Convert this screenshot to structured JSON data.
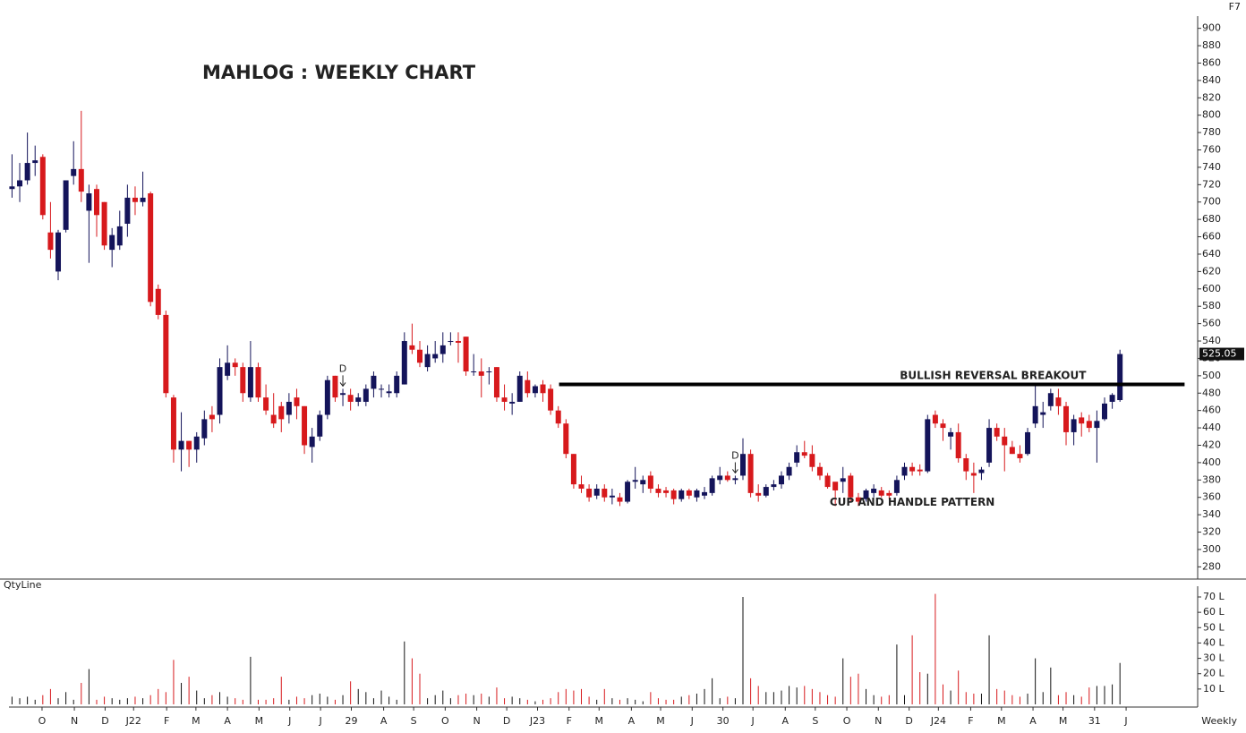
{
  "chart_data": {
    "type": "candlestick",
    "title": "MAHLOG : WEEKLY CHART",
    "corner_label": "F7",
    "period_label": "Weekly",
    "colors": {
      "up": "#14145a",
      "down": "#d7191c"
    },
    "open": [
      715,
      718,
      725,
      745,
      752,
      665,
      620,
      668,
      730,
      738,
      690,
      715,
      700,
      645,
      650,
      675,
      705,
      700,
      710,
      600,
      570,
      475,
      415,
      425,
      415,
      428,
      455,
      455,
      500,
      515,
      510,
      475,
      510,
      475,
      455,
      465,
      455,
      475,
      465,
      418,
      430,
      455,
      500,
      478,
      478,
      470,
      470,
      485,
      485,
      480,
      480,
      490,
      535,
      530,
      510,
      520,
      525,
      540,
      540,
      545,
      505,
      505,
      505,
      510,
      475,
      468,
      470,
      495,
      480,
      490,
      485,
      460,
      445,
      410,
      375,
      370,
      362,
      370,
      360,
      360,
      355,
      378,
      375,
      385,
      370,
      368,
      368,
      358,
      368,
      360,
      362,
      365,
      380,
      385,
      380,
      385,
      410,
      365,
      362,
      372,
      375,
      385,
      400,
      412,
      410,
      395,
      385,
      378,
      378,
      385,
      360,
      358,
      365,
      368,
      365,
      365,
      385,
      395,
      392,
      390,
      455,
      445,
      430,
      435,
      405,
      388,
      388,
      400,
      440,
      430,
      418,
      410,
      410,
      445,
      455,
      465,
      475,
      465,
      435,
      452,
      448,
      440,
      450,
      470,
      472
    ],
    "high": [
      755,
      745,
      780,
      765,
      755,
      700,
      668,
      725,
      770,
      805,
      720,
      720,
      700,
      670,
      690,
      720,
      718,
      735,
      712,
      605,
      575,
      478,
      458,
      425,
      435,
      460,
      465,
      520,
      535,
      520,
      515,
      540,
      515,
      490,
      480,
      470,
      480,
      485,
      465,
      440,
      460,
      500,
      500,
      485,
      485,
      480,
      490,
      505,
      490,
      490,
      505,
      550,
      560,
      540,
      535,
      540,
      550,
      550,
      550,
      545,
      525,
      520,
      510,
      510,
      490,
      480,
      505,
      505,
      490,
      495,
      490,
      465,
      450,
      410,
      385,
      375,
      375,
      375,
      370,
      365,
      380,
      395,
      385,
      390,
      375,
      372,
      370,
      370,
      370,
      370,
      372,
      385,
      395,
      390,
      385,
      428,
      415,
      375,
      375,
      380,
      390,
      400,
      420,
      425,
      420,
      400,
      388,
      375,
      395,
      388,
      365,
      370,
      375,
      372,
      368,
      385,
      400,
      400,
      398,
      455,
      460,
      450,
      440,
      445,
      410,
      400,
      395,
      450,
      445,
      440,
      425,
      420,
      440,
      490,
      470,
      485,
      485,
      470,
      455,
      458,
      455,
      460,
      475,
      480,
      530
    ],
    "low": [
      705,
      700,
      720,
      730,
      680,
      635,
      610,
      665,
      720,
      700,
      630,
      660,
      645,
      625,
      645,
      660,
      685,
      695,
      580,
      565,
      475,
      400,
      390,
      395,
      400,
      420,
      435,
      445,
      495,
      500,
      470,
      470,
      470,
      455,
      440,
      435,
      445,
      450,
      410,
      400,
      425,
      450,
      470,
      465,
      460,
      465,
      465,
      475,
      475,
      475,
      475,
      490,
      525,
      510,
      505,
      515,
      515,
      535,
      515,
      500,
      500,
      475,
      490,
      470,
      460,
      455,
      470,
      475,
      475,
      470,
      455,
      440,
      405,
      370,
      365,
      355,
      358,
      355,
      352,
      350,
      353,
      370,
      365,
      365,
      360,
      360,
      352,
      355,
      358,
      355,
      358,
      362,
      375,
      378,
      375,
      380,
      360,
      355,
      360,
      368,
      370,
      380,
      395,
      405,
      390,
      380,
      370,
      350,
      365,
      355,
      350,
      355,
      360,
      360,
      358,
      362,
      380,
      385,
      385,
      388,
      440,
      425,
      415,
      400,
      380,
      365,
      380,
      395,
      425,
      390,
      410,
      400,
      408,
      440,
      440,
      460,
      455,
      420,
      420,
      430,
      435,
      400,
      448,
      462,
      470
    ],
    "close": [
      718,
      725,
      745,
      748,
      685,
      645,
      665,
      725,
      738,
      712,
      710,
      685,
      650,
      662,
      672,
      705,
      700,
      705,
      585,
      570,
      480,
      415,
      425,
      415,
      430,
      450,
      450,
      510,
      515,
      510,
      480,
      510,
      475,
      460,
      445,
      450,
      470,
      465,
      420,
      430,
      455,
      495,
      475,
      480,
      470,
      475,
      485,
      500,
      485,
      482,
      500,
      540,
      530,
      515,
      525,
      525,
      535,
      540,
      538,
      505,
      505,
      500,
      505,
      475,
      470,
      470,
      500,
      480,
      488,
      480,
      460,
      445,
      410,
      375,
      370,
      360,
      370,
      360,
      362,
      355,
      378,
      380,
      380,
      370,
      365,
      365,
      358,
      368,
      362,
      368,
      366,
      382,
      385,
      380,
      382,
      410,
      365,
      362,
      372,
      375,
      385,
      395,
      412,
      408,
      395,
      385,
      372,
      368,
      382,
      360,
      355,
      368,
      370,
      362,
      362,
      380,
      395,
      390,
      390,
      450,
      445,
      440,
      435,
      405,
      390,
      385,
      392,
      440,
      430,
      420,
      410,
      405,
      435,
      465,
      458,
      480,
      465,
      435,
      450,
      445,
      440,
      448,
      468,
      478,
      525
    ],
    "ylim": [
      268,
      912
    ],
    "yticks": [
      280,
      300,
      320,
      340,
      360,
      380,
      400,
      420,
      440,
      460,
      480,
      500,
      520,
      540,
      560,
      580,
      600,
      620,
      640,
      660,
      680,
      700,
      720,
      740,
      760,
      780,
      800,
      820,
      840,
      860,
      880,
      900
    ],
    "xlim": [
      -0.4,
      154.1
    ],
    "xticks": [
      {
        "value": 3.9,
        "label": "O"
      },
      {
        "value": 8.1,
        "label": "N"
      },
      {
        "value": 12.1,
        "label": "D"
      },
      {
        "value": 15.8,
        "label": "J22"
      },
      {
        "value": 20.1,
        "label": "F"
      },
      {
        "value": 23.9,
        "label": "M"
      },
      {
        "value": 28,
        "label": "A"
      },
      {
        "value": 32.1,
        "label": "M"
      },
      {
        "value": 36.1,
        "label": "J"
      },
      {
        "value": 40.1,
        "label": "J"
      },
      {
        "value": 44.1,
        "label": "29"
      },
      {
        "value": 48.3,
        "label": "A"
      },
      {
        "value": 52.2,
        "label": "S"
      },
      {
        "value": 56.3,
        "label": "O"
      },
      {
        "value": 60.4,
        "label": "N"
      },
      {
        "value": 64.3,
        "label": "D"
      },
      {
        "value": 68.3,
        "label": "J23"
      },
      {
        "value": 72.4,
        "label": "F"
      },
      {
        "value": 76.3,
        "label": "M"
      },
      {
        "value": 80.5,
        "label": "A"
      },
      {
        "value": 84.3,
        "label": "M"
      },
      {
        "value": 88.4,
        "label": "J"
      },
      {
        "value": 92.4,
        "label": "30"
      },
      {
        "value": 96.3,
        "label": "J"
      },
      {
        "value": 100.5,
        "label": "A"
      },
      {
        "value": 104.4,
        "label": "S"
      },
      {
        "value": 108.5,
        "label": "O"
      },
      {
        "value": 112.6,
        "label": "N"
      },
      {
        "value": 116.6,
        "label": "D"
      },
      {
        "value": 120.4,
        "label": "J24"
      },
      {
        "value": 124.6,
        "label": "F"
      },
      {
        "value": 128.6,
        "label": "M"
      },
      {
        "value": 132.7,
        "label": "A"
      },
      {
        "value": 136.6,
        "label": "M"
      },
      {
        "value": 140.7,
        "label": "31"
      },
      {
        "value": 144.8,
        "label": "J"
      }
    ],
    "last_price": 525.05,
    "level_line": {
      "value": 490,
      "from": 71.1,
      "to": 152.4
    },
    "annotations": [
      {
        "text": "BULLISH REVERSAL BREAKOUT",
        "x": 127.5,
        "y": 500
      },
      {
        "text": "CUP AND HANDLE PATTERN",
        "x": 117,
        "y": 354
      }
    ],
    "markers": [
      {
        "index": 43,
        "label": "D"
      },
      {
        "index": 94,
        "label": "D"
      }
    ],
    "volume": {
      "name": "QtyLine",
      "ylim": [
        0,
        77
      ],
      "yticks": [
        {
          "value": 10,
          "label": "10 L"
        },
        {
          "value": 20,
          "label": "20 L"
        },
        {
          "value": 30,
          "label": "30 L"
        },
        {
          "value": 40,
          "label": "40 L"
        },
        {
          "value": 50,
          "label": "50 L"
        },
        {
          "value": 60,
          "label": "60 L"
        },
        {
          "value": 70,
          "label": "70 L"
        }
      ],
      "values": [
        5,
        4,
        5,
        3,
        6,
        10,
        4,
        8,
        3,
        14,
        23,
        3,
        5,
        4,
        3,
        4,
        5,
        4,
        6,
        10,
        8,
        29,
        14,
        18,
        9,
        4,
        6,
        8,
        5,
        4,
        3,
        31,
        3,
        3,
        4,
        18,
        3,
        5,
        4,
        6,
        7,
        5,
        3,
        6,
        15,
        10,
        8,
        4,
        9,
        5,
        3,
        41,
        30,
        20,
        4,
        6,
        9,
        4,
        6,
        7,
        6,
        7,
        5,
        11,
        4,
        5,
        4,
        3,
        2,
        3,
        4,
        8,
        10,
        9,
        10,
        5,
        3,
        10,
        4,
        3,
        4,
        3,
        2,
        8,
        4,
        3,
        3,
        5,
        6,
        7,
        10,
        17,
        4,
        5,
        4,
        70,
        17,
        12,
        8,
        8,
        9,
        12,
        11,
        12,
        10,
        8,
        6,
        5,
        30,
        18,
        20,
        10,
        6,
        5,
        6,
        39,
        6,
        45,
        21,
        20,
        72,
        13,
        9,
        22,
        8,
        7,
        7,
        45,
        10,
        9,
        6,
        5,
        7,
        30,
        8,
        24,
        6,
        8,
        6,
        5,
        11,
        12,
        12,
        13,
        27
      ]
    }
  }
}
